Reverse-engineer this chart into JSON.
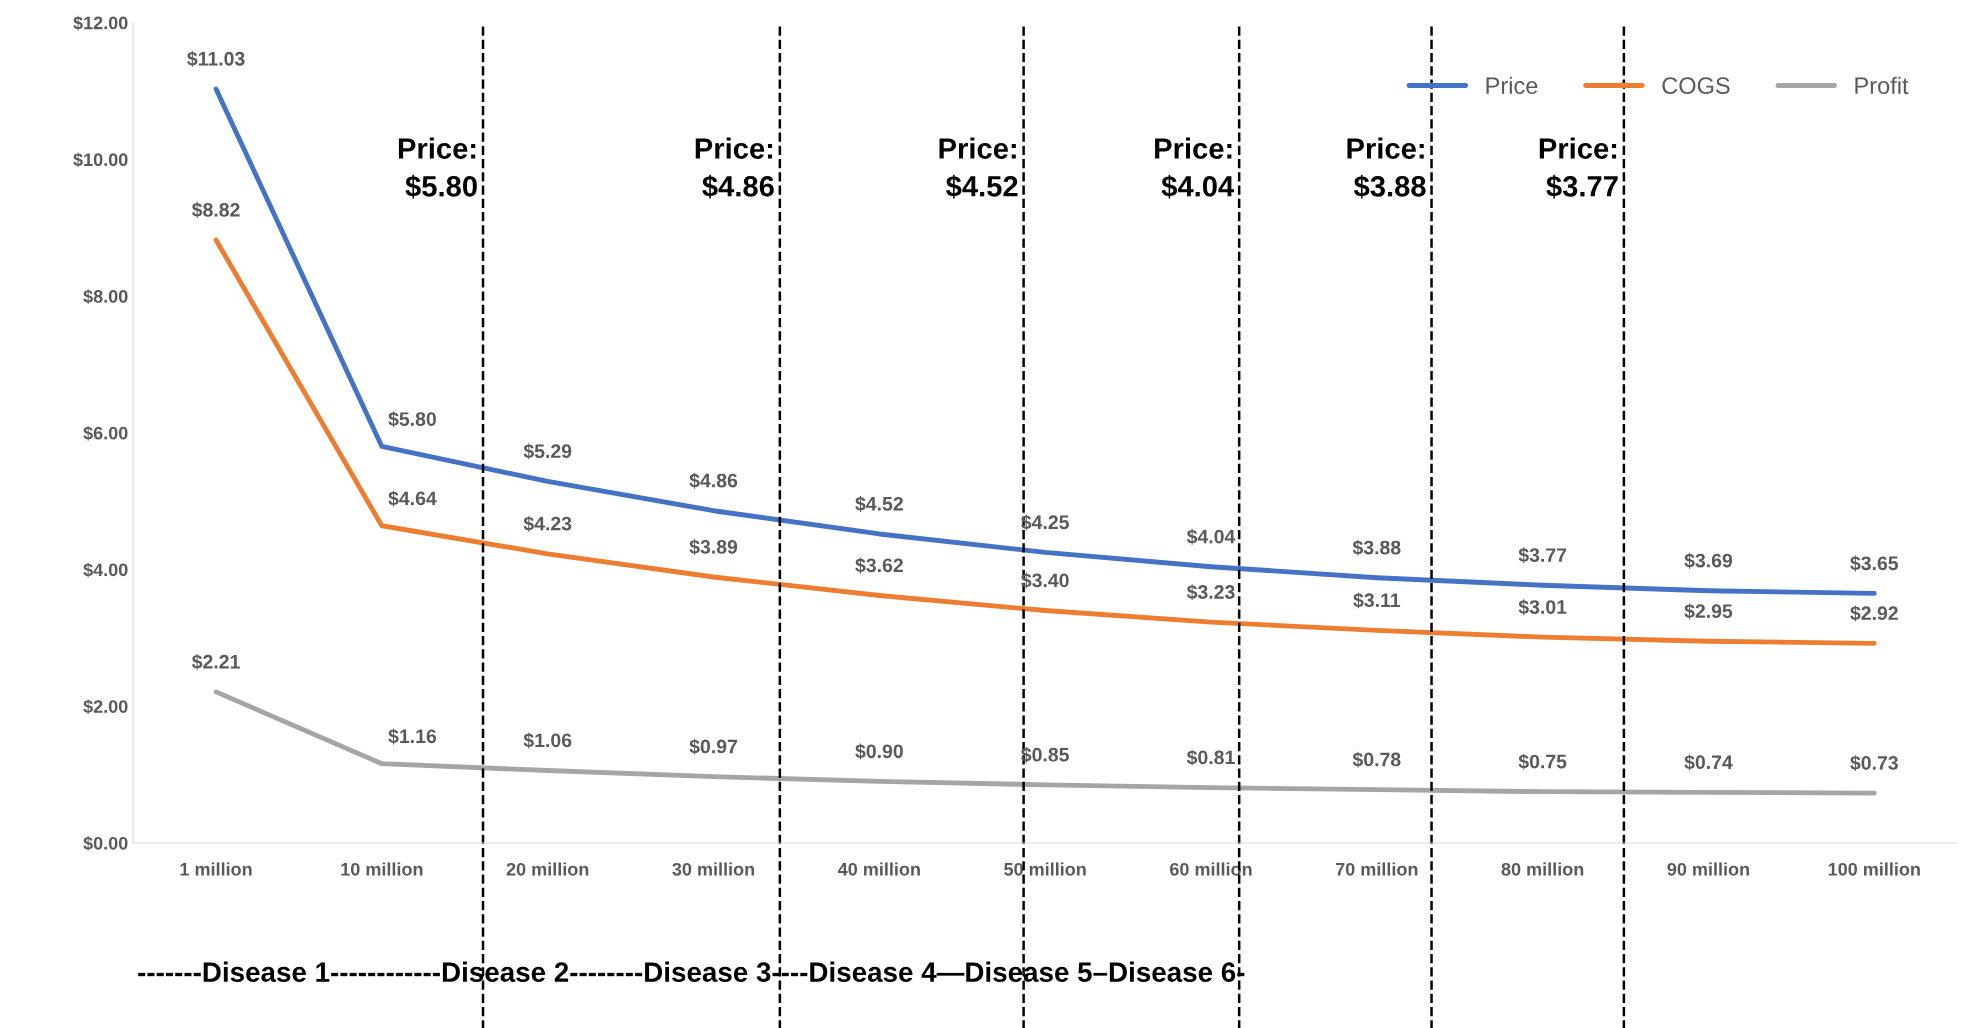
{
  "chart_data": {
    "type": "line",
    "categories": [
      "1 million",
      "10 million",
      "20 million",
      "30 million",
      "40 million",
      "50 million",
      "60 million",
      "70 million",
      "80 million",
      "90 million",
      "100 million"
    ],
    "series": [
      {
        "name": "Price",
        "color": "#4472c4",
        "values": [
          11.03,
          5.8,
          5.29,
          4.86,
          4.52,
          4.25,
          4.04,
          3.88,
          3.77,
          3.69,
          3.65
        ],
        "value_labels": [
          "$11.03",
          "$5.80",
          "$5.29",
          "$4.86",
          "$4.52",
          "$4.25",
          "$4.04",
          "$3.88",
          "$3.77",
          "$3.69",
          "$3.65"
        ]
      },
      {
        "name": "COGS",
        "color": "#ed7d31",
        "values": [
          8.82,
          4.64,
          4.23,
          3.89,
          3.62,
          3.4,
          3.23,
          3.11,
          3.01,
          2.95,
          2.92
        ],
        "value_labels": [
          "$8.82",
          "$4.64",
          "$4.23",
          "$3.89",
          "$3.62",
          "$3.40",
          "$3.23",
          "$3.11",
          "$3.01",
          "$2.95",
          "$2.92"
        ]
      },
      {
        "name": "Profit",
        "color": "#a5a5a5",
        "values": [
          2.21,
          1.16,
          1.06,
          0.97,
          0.9,
          0.85,
          0.81,
          0.78,
          0.75,
          0.74,
          0.73
        ],
        "value_labels": [
          "$2.21",
          "$1.16",
          "$1.06",
          "$0.97",
          "$0.90",
          "$0.85",
          "$0.81",
          "$0.78",
          "$0.75",
          "$0.74",
          "$0.73"
        ]
      }
    ],
    "ylim": [
      0,
      12
    ],
    "yticks": [
      {
        "value": 0,
        "label": "$0.00"
      },
      {
        "value": 2,
        "label": "$2.00"
      },
      {
        "value": 4,
        "label": "$4.00"
      },
      {
        "value": 6,
        "label": "$6.00"
      },
      {
        "value": 8,
        "label": "$8.00"
      },
      {
        "value": 10,
        "label": "$10.00"
      },
      {
        "value": 12,
        "label": "$12.00"
      }
    ],
    "legend": "top right",
    "grid": false,
    "marker": "none",
    "line_style": "solid",
    "annotations": [
      "Price:\n$5.80",
      "Price:\n$4.86",
      "Price:\n$4.52",
      "Price:\n$4.04",
      "Price:\n$3.88",
      "Price:\n$3.77",
      "-------Disease 1------------Disease 2--------Disease 3----Disease 4—Disease 5–Disease 6-"
    ]
  }
}
